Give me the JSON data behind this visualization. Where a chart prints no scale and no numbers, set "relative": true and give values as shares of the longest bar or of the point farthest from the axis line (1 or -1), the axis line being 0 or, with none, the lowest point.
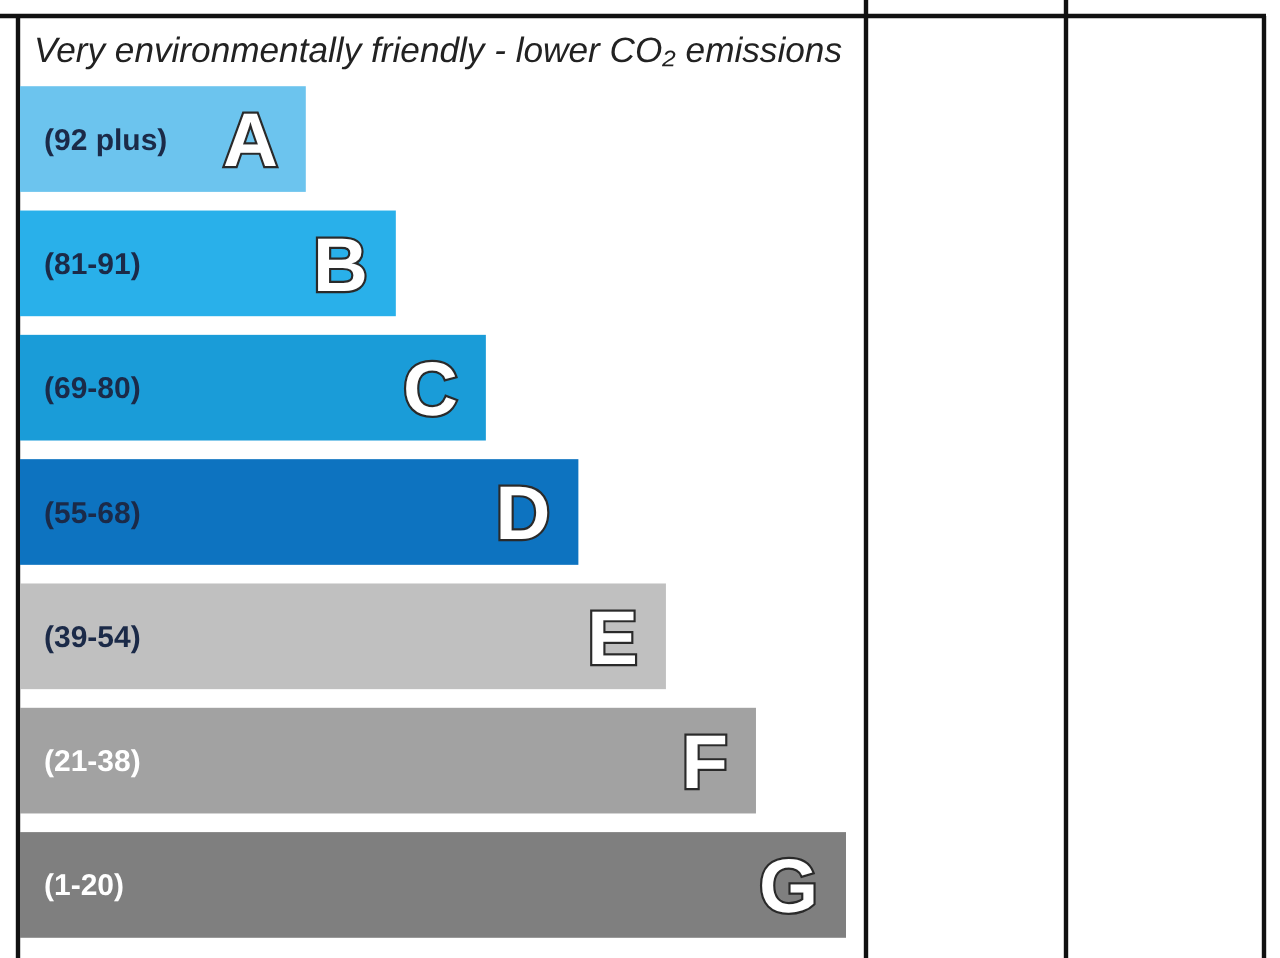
{
  "chart_data": {
    "type": "bar",
    "orientation": "horizontal",
    "relative": true,
    "title": "Very environmentally friendly - lower CO₂ emissions",
    "categories": [
      "A",
      "B",
      "C",
      "D",
      "E",
      "F",
      "G"
    ],
    "values": [
      0.346,
      0.455,
      0.564,
      0.676,
      0.782,
      0.891,
      1
    ],
    "colors": [
      "#6cc4ee",
      "#29b0ea",
      "#1a9cd8",
      "#0d73c0",
      "#c0c0c0",
      "#a2a2a2",
      "#7f7f7f"
    ],
    "annotations": [
      "(92 plus)",
      "(81-91)",
      "(69-80)",
      "(55-68)",
      "(39-54)",
      "(21-38)",
      "(1-20)"
    ]
  }
}
